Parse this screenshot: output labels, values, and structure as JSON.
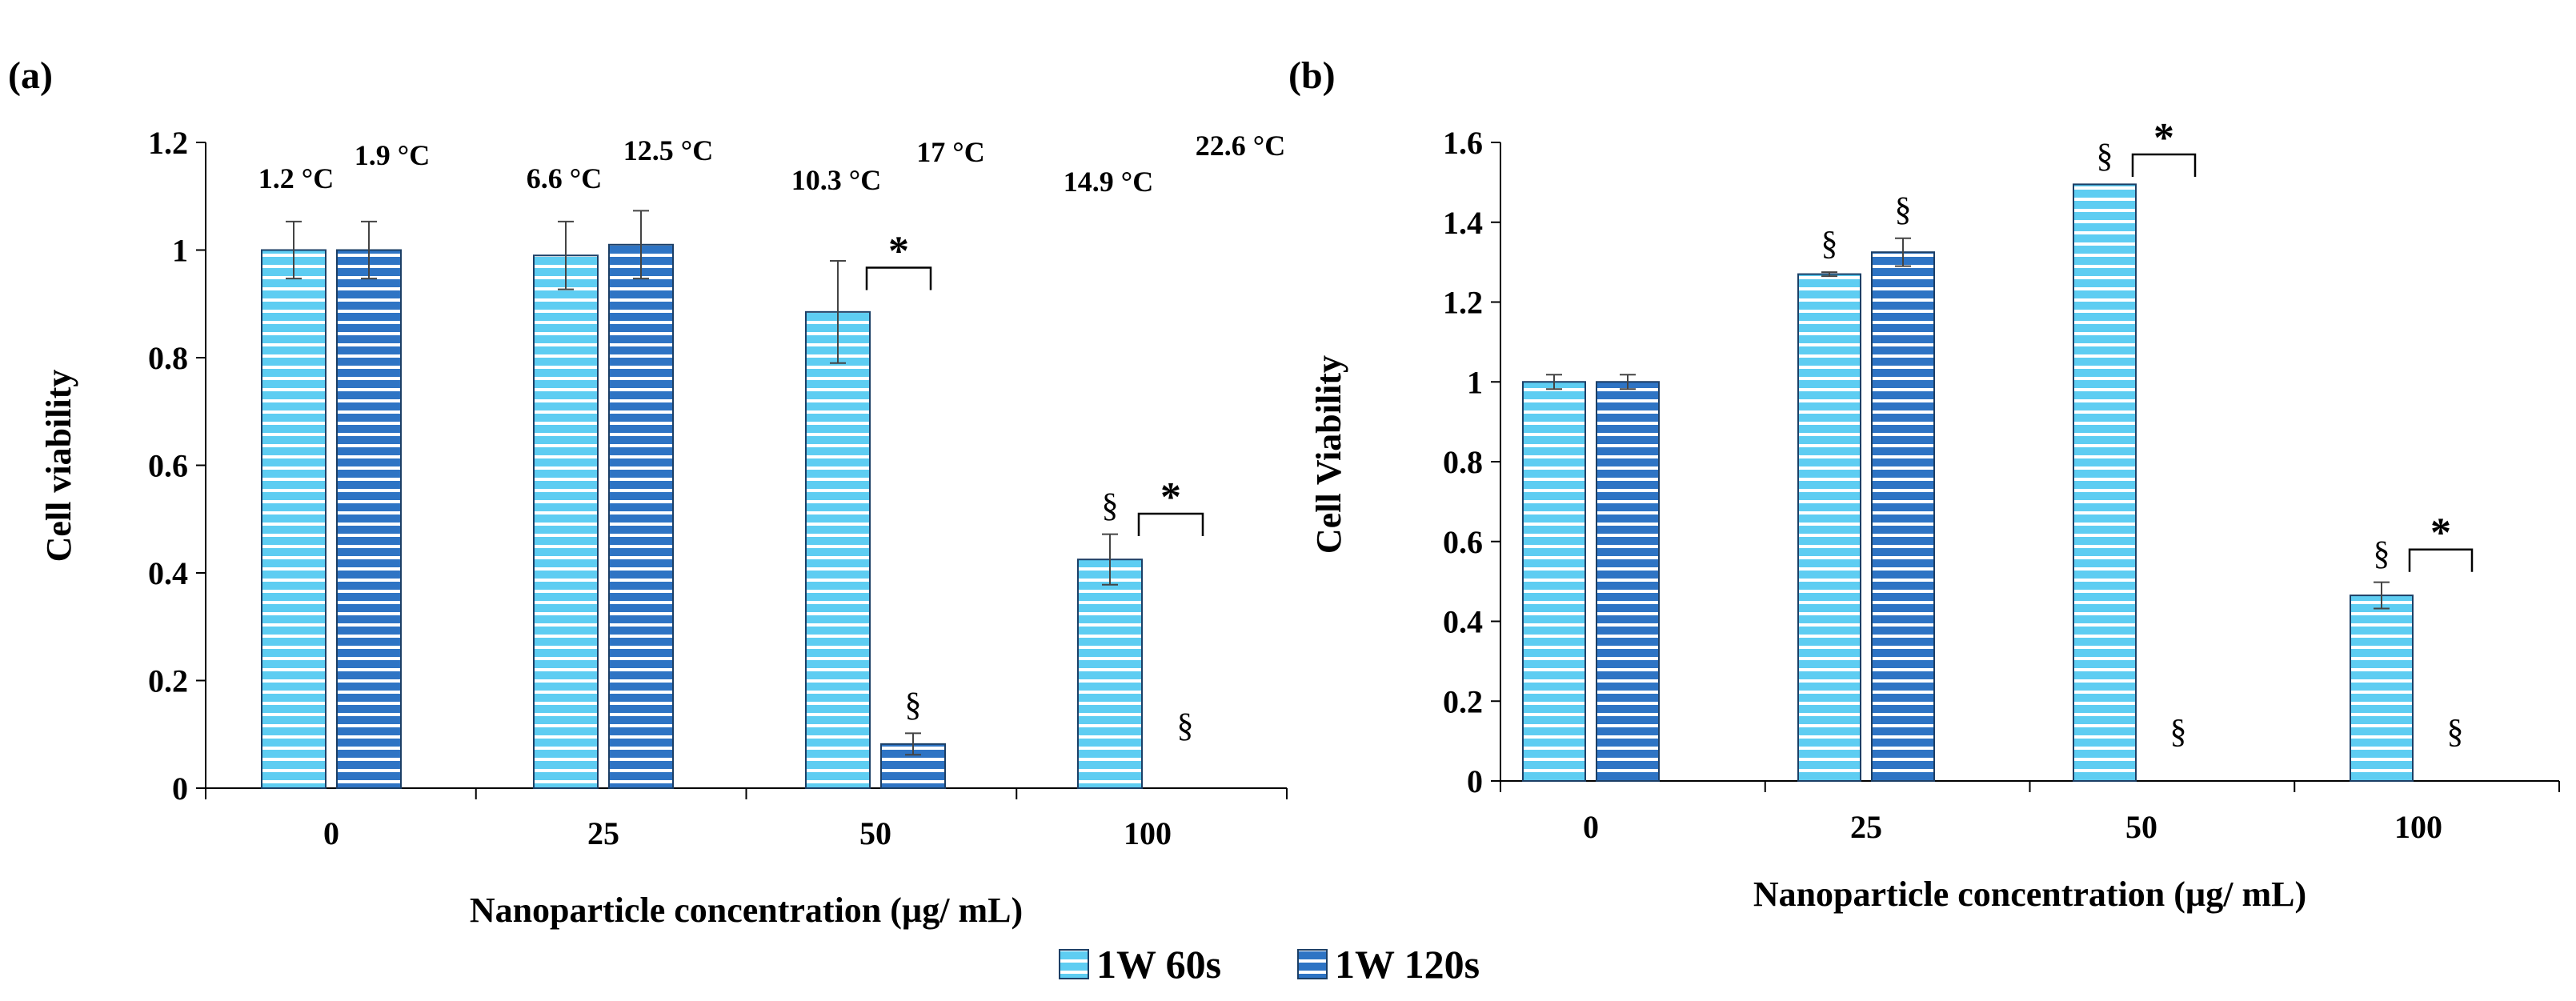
{
  "palette": {
    "light": "#5ecdf2",
    "dark": "#2e74c4",
    "stripe": "#ffffff",
    "outline": "#1c3f66"
  },
  "legend": [
    {
      "label": "1W 60s",
      "color_key": "light"
    },
    {
      "label": "1W 120s",
      "color_key": "dark"
    }
  ],
  "chart_data": [
    {
      "type": "bar",
      "panel_label": "(a)",
      "xlabel": "Nanoparticle concentration (µg/ mL)",
      "ylabel": "Cell viability",
      "ylim": [
        0,
        1.2
      ],
      "yticks": [
        "0",
        "0.2",
        "0.4",
        "0.6",
        "0.8",
        "1",
        "1.2"
      ],
      "categories": [
        "0",
        "25",
        "50",
        "100"
      ],
      "series": [
        {
          "name": "1W 60s",
          "values": [
            1.0,
            0.99,
            0.885,
            0.425
          ],
          "errors": [
            0.053,
            0.063,
            0.095,
            0.047
          ]
        },
        {
          "name": "1W 120s",
          "values": [
            1.0,
            1.01,
            0.082,
            0.0
          ],
          "errors": [
            0.053,
            0.063,
            0.02,
            0.0
          ]
        }
      ],
      "temperatures": [
        [
          "1.2 °C",
          "1.9 °C"
        ],
        [
          "6.6 °C",
          "12.5 °C"
        ],
        [
          "10.3 °C",
          "17 °C"
        ],
        [
          "14.9 °C",
          "22.6 °C"
        ]
      ],
      "section_marks": [
        [
          "",
          ""
        ],
        [
          "",
          ""
        ],
        [
          "",
          "§"
        ],
        [
          "§",
          "§"
        ]
      ],
      "significance": [
        {
          "category": 2,
          "label": "*"
        },
        {
          "category": 3,
          "label": "*"
        }
      ],
      "grid": false
    },
    {
      "type": "bar",
      "panel_label": "(b)",
      "xlabel": "Nanoparticle concentration (µg/ mL)",
      "ylabel": "Cell Viability",
      "ylim": [
        0,
        1.6
      ],
      "yticks": [
        "0",
        "0.2",
        "0.4",
        "0.6",
        "0.8",
        "1",
        "1.2",
        "1.4",
        "1.6"
      ],
      "categories": [
        "0",
        "25",
        "50",
        "100"
      ],
      "series": [
        {
          "name": "1W 60s",
          "values": [
            1.0,
            1.27,
            1.495,
            0.465
          ],
          "errors": [
            0.018,
            0.005,
            0.0,
            0.033
          ]
        },
        {
          "name": "1W 120s",
          "values": [
            1.0,
            1.325,
            0.0,
            0.0
          ],
          "errors": [
            0.018,
            0.035,
            0.0,
            0.0
          ]
        }
      ],
      "section_marks": [
        [
          "",
          ""
        ],
        [
          "§",
          "§"
        ],
        [
          "§",
          "§"
        ],
        [
          "§",
          "§"
        ]
      ],
      "significance": [
        {
          "category": 2,
          "label": "*"
        },
        {
          "category": 3,
          "label": "*"
        }
      ],
      "grid": false
    }
  ]
}
